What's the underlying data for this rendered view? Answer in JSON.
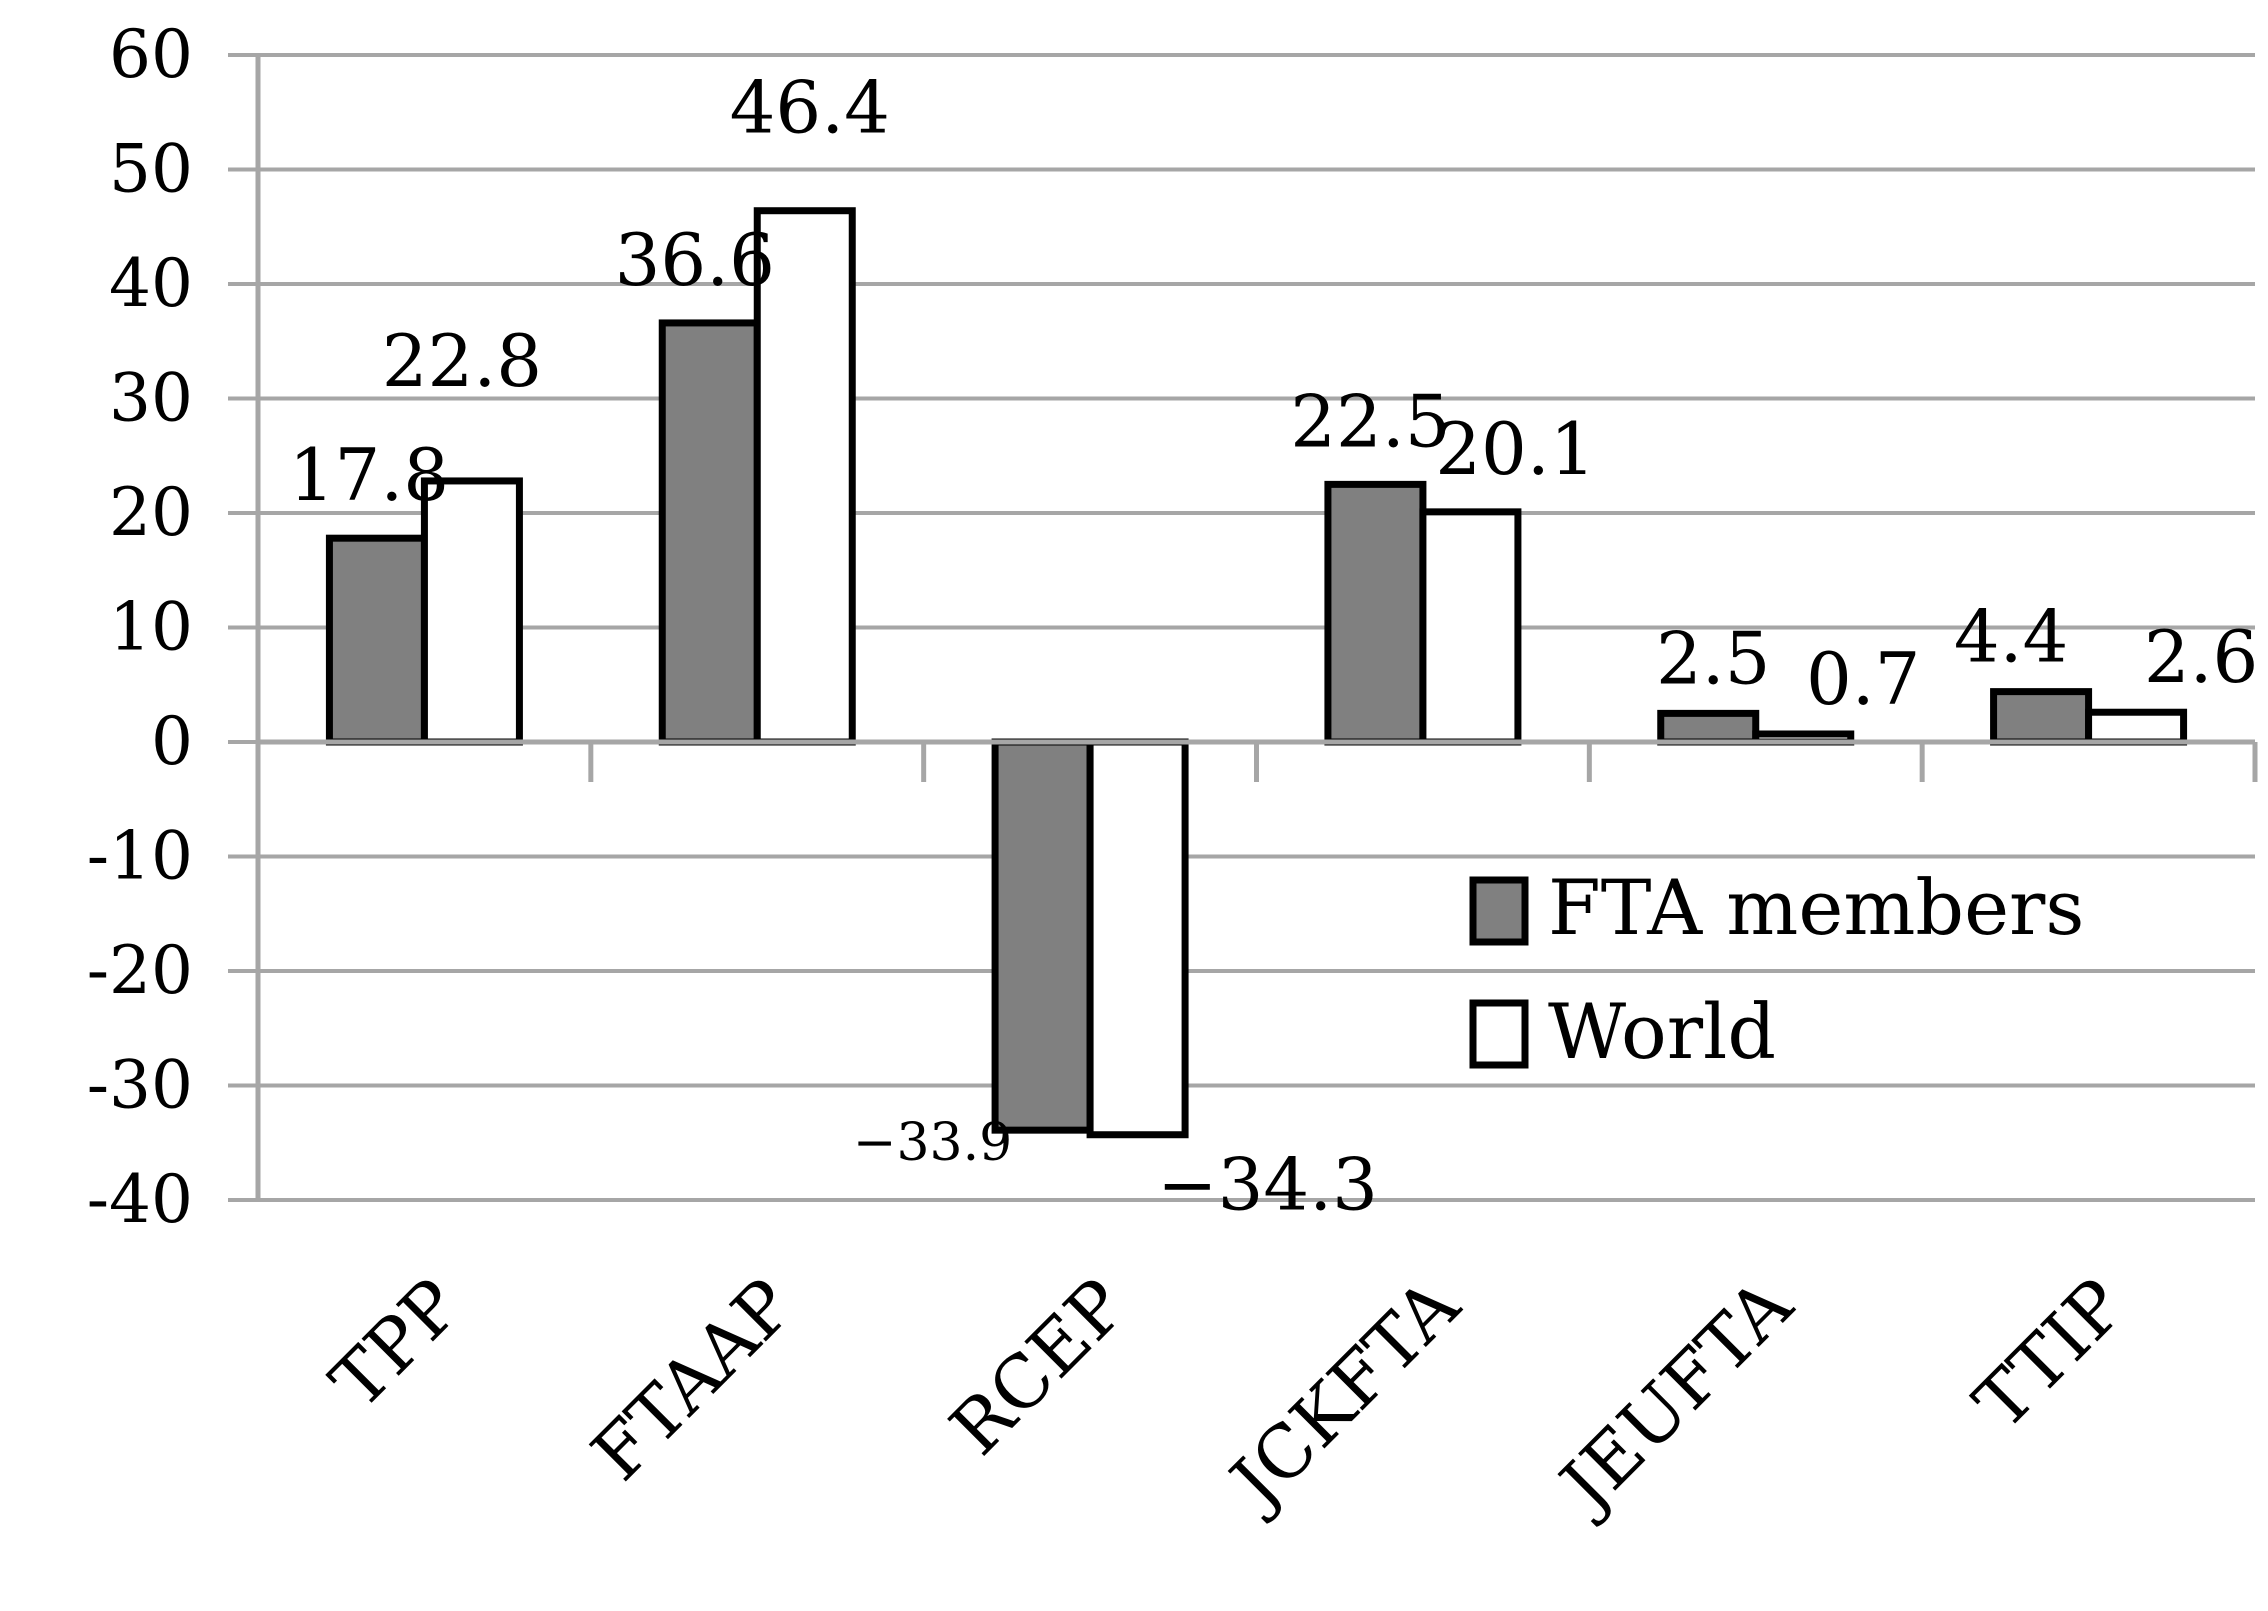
{
  "chart_data": {
    "type": "bar",
    "title": "",
    "xlabel": "",
    "ylabel": "",
    "ylim": [
      -40,
      60
    ],
    "yticks": [
      60,
      50,
      40,
      30,
      20,
      10,
      0,
      -10,
      -20,
      -30,
      -40
    ],
    "grid": true,
    "legend_position": "center-right",
    "categories": [
      "TPP",
      "FTAAP",
      "RCEP",
      "JCKFTA",
      "JEUFTA",
      "TTIP"
    ],
    "series": [
      {
        "name": "FTA members",
        "color": "#808080",
        "values": [
          17.8,
          36.6,
          -33.9,
          22.5,
          2.5,
          4.4
        ],
        "labels": [
          "17.8",
          "36.6",
          "−33.9",
          "22.5",
          "2.5",
          "4.4"
        ]
      },
      {
        "name": "World",
        "color": "#ffffff",
        "values": [
          22.8,
          46.4,
          -34.3,
          20.1,
          0.7,
          2.6
        ],
        "labels": [
          "22.8",
          "46.4",
          "−34.3",
          "20.1",
          "0.7",
          "2.6"
        ]
      }
    ]
  }
}
